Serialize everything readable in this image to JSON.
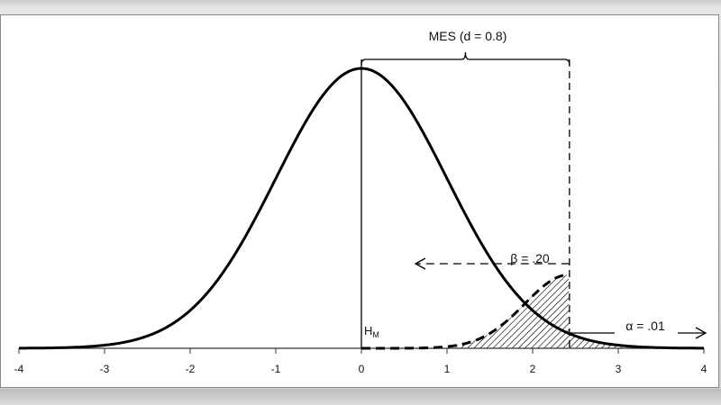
{
  "chart_data": {
    "type": "line",
    "xlim": [
      -4,
      4
    ],
    "x_ticks": [
      "-4",
      "-3",
      "-2",
      "-1",
      "0",
      "1",
      "2",
      "3",
      "4"
    ],
    "grid": false,
    "distribution": "standard normal",
    "critical_value": 2.43,
    "annotations": {
      "mes": "MES (d = 0.8)",
      "beta": "β = .20",
      "alpha": "α = .01",
      "h_label": "H",
      "h_sub": "M"
    }
  }
}
